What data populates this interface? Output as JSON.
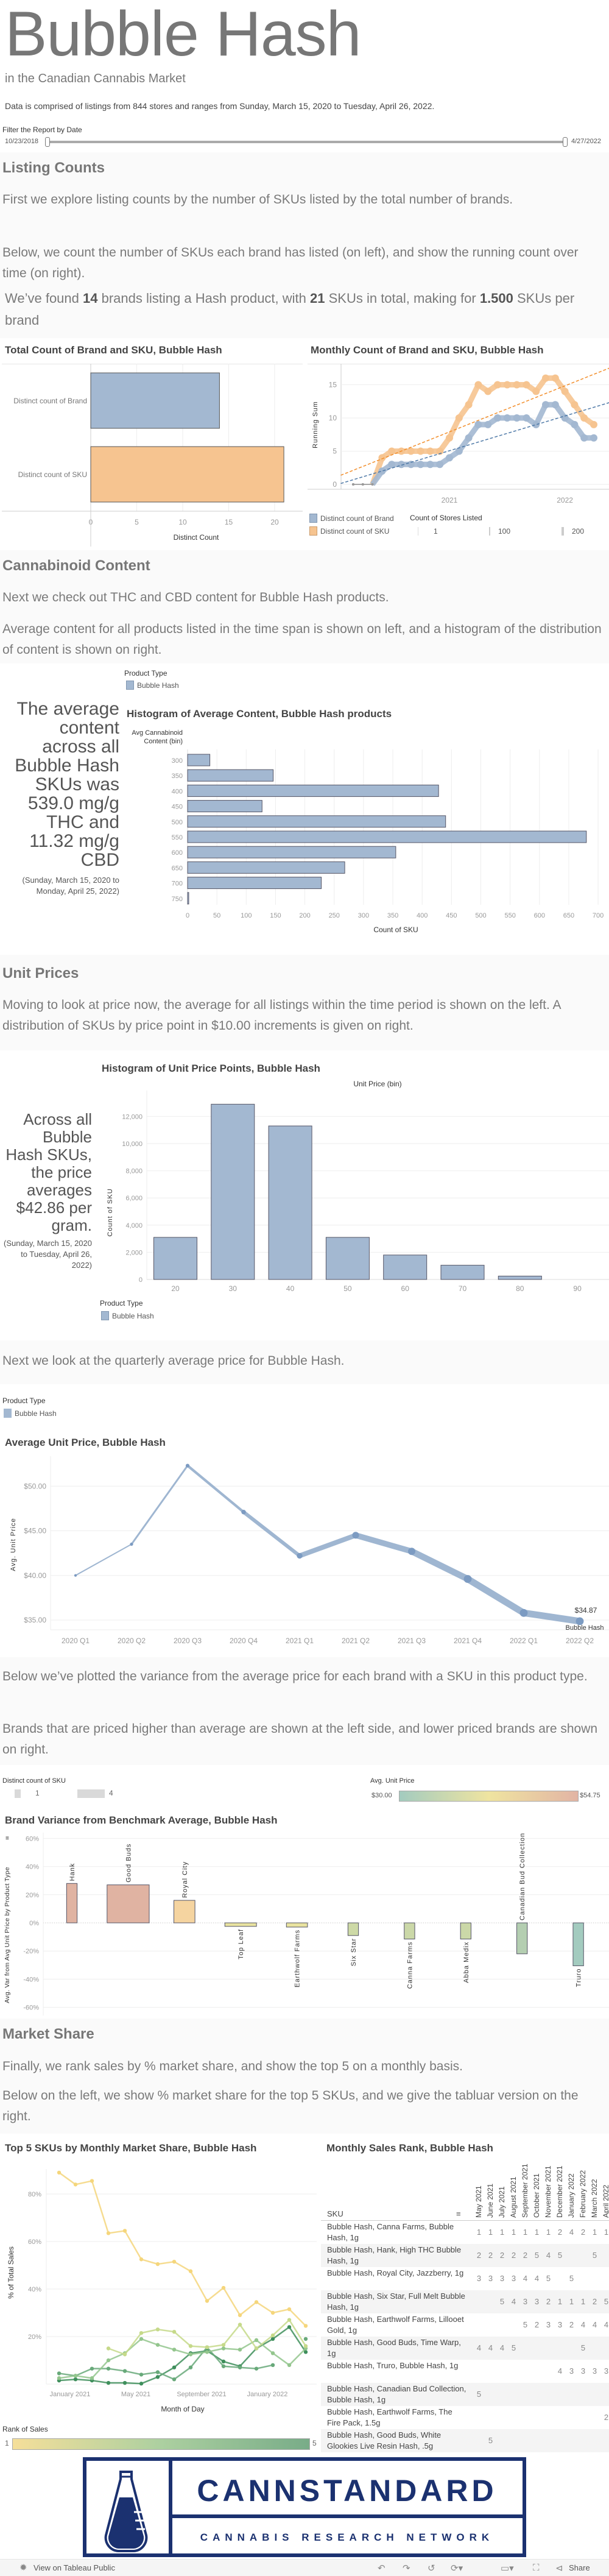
{
  "header": {
    "title": "Bubble Hash",
    "subtitle": "in the Canadian Cannabis Market",
    "data_note": "Data is comprised of listings from 844 stores and ranges from Sunday, March 15, 2020 to Tuesday, April 26, 2022.",
    "filter_label": "Filter the Report by Date",
    "filter_start": "10/23/2018",
    "filter_end": "4/27/2022"
  },
  "listing": {
    "heading": "Listing Counts",
    "p1": "First we explore listing counts by the number of SKUs listed by the total number of brands.",
    "p2": "Below, we count the number of SKUs each brand has listed (on left), and show the running count over time (on right).",
    "found_pre": "We’ve found ",
    "found_brands": "14",
    "found_mid1": " brands listing a Hash product, with ",
    "found_skus": "21",
    "found_mid2": " SKUs in total, making for ",
    "found_ratio": "1.500",
    "found_post": " SKUs per brand",
    "legend_brand": "Distinct count of Brand",
    "legend_sku": "Distinct count of SKU",
    "stores_legend_title": "Count of Stores Listed",
    "stores_legend_values": [
      "1",
      "100",
      "200"
    ]
  },
  "cannabinoid": {
    "heading": "Cannabinoid Content",
    "p1": "Next we check out THC and CBD content for Bubble Hash products.",
    "p2": "Average content for all products listed in the time span is shown on left, and a histogram of the distribution of content is shown on right.",
    "legend_title": "Product Type",
    "legend_item": "Bubble Hash",
    "summary_lines": [
      "The average",
      "content",
      "across all",
      "Bubble Hash",
      "SKUs was",
      "539.0 mg/g",
      "THC and",
      "11.32 mg/g",
      "CBD"
    ],
    "summary_date": "(Sunday, March 15, 2020 to Monday, April 25, 2022)"
  },
  "prices": {
    "heading": "Unit Prices",
    "p1": "Moving to look at price now, the average for all listings within the time period is shown on the left. A distribution of SKUs by price point in $10.00 increments is given on right.",
    "summary_lines": [
      "Across all",
      "Bubble",
      "Hash SKUs,",
      "the price",
      "averages",
      "$42.86 per",
      "gram."
    ],
    "summary_date": "(Sunday, March 15, 2020 to Tuesday, April 26, 2022)",
    "legend_title": "Product Type",
    "legend_item": "Bubble Hash",
    "quarterly_text": "Next we look at the quarterly average price for Bubble Hash.",
    "q_legend_title": "Product Type",
    "q_legend_item": "Bubble Hash"
  },
  "variance": {
    "p1": "Below we’ve plotted the variance from the average price for each brand with a SKU in this product type.",
    "p2": "Brands that are priced higher than average are shown at the left side, and lower priced brands are shown on right.",
    "size_legend_title": "Distinct count of SKU",
    "size_legend_values": [
      "1",
      "4"
    ],
    "color_legend_title": "Avg. Unit Price",
    "color_legend_min": "$30.00",
    "color_legend_max": "$54.75",
    "color_low": "#a3cbbf",
    "color_mid": "#efe4a0",
    "color_high": "#e2b4a4"
  },
  "market": {
    "heading": "Market Share",
    "p1": "Finally, we rank sales by % market share, and show the top 5 on a monthly basis.",
    "p2": "Below on the left, we show % market share for the top 5 SKUs, and we give the tabluar version on the right.",
    "rank_legend_title": "Rank of Sales",
    "rank_legend_min": "1",
    "rank_legend_max": "5"
  },
  "table": {
    "title": "Monthly Sales Rank, Bubble Hash",
    "sku_header": "SKU",
    "months": [
      "May 2021",
      "June 2021",
      "July 2021",
      "August 2021",
      "September 2021",
      "October 2021",
      "November 2021",
      "December 2021",
      "January 2022",
      "February 2022",
      "March 2022",
      "April 2022"
    ],
    "rows": [
      {
        "sku": "Bubble Hash, Canna Farms, Bubble Hash, 1g",
        "ranks": [
          "1",
          "1",
          "1",
          "1",
          "1",
          "1",
          "1",
          "2",
          "4",
          "2",
          "1",
          "1"
        ]
      },
      {
        "sku": "Bubble Hash, Hank, High THC Bubble Hash, 1g",
        "ranks": [
          "2",
          "2",
          "2",
          "2",
          "2",
          "5",
          "4",
          "5",
          "",
          "",
          "5",
          ""
        ]
      },
      {
        "sku": "Bubble Hash, Royal City, Jazzberry, 1g",
        "ranks": [
          "3",
          "3",
          "3",
          "3",
          "4",
          "4",
          "5",
          "",
          "5",
          "",
          "",
          ""
        ]
      },
      {
        "sku": "Bubble Hash, Six Star, Full Melt Bubble Hash, 1g",
        "ranks": [
          "",
          "",
          "5",
          "4",
          "3",
          "3",
          "2",
          "1",
          "1",
          "1",
          "2",
          "5"
        ]
      },
      {
        "sku": "Bubble Hash, Earthwolf Farms, Lillooet Gold, 1g",
        "ranks": [
          "",
          "",
          "",
          "",
          "5",
          "2",
          "3",
          "3",
          "2",
          "4",
          "4",
          "4"
        ]
      },
      {
        "sku": "Bubble Hash, Good Buds, Time Warp, 1g",
        "ranks": [
          "4",
          "4",
          "4",
          "5",
          "",
          "",
          "",
          "",
          "",
          "5",
          "",
          ""
        ]
      },
      {
        "sku": "Bubble Hash, Truro, Bubble Hash, 1g",
        "ranks": [
          "",
          "",
          "",
          "",
          "",
          "",
          "",
          "4",
          "3",
          "3",
          "3",
          "3"
        ]
      },
      {
        "sku": "Bubble Hash, Canadian Bud Collection, Bubble Hash, 1g",
        "ranks": [
          "5",
          "",
          "",
          "",
          "",
          "",
          "",
          "",
          "",
          "",
          "",
          ""
        ]
      },
      {
        "sku": "Bubble Hash, Earthwolf Farms, The Fire Pack, 1.5g",
        "ranks": [
          "",
          "",
          "",
          "",
          "",
          "",
          "",
          "",
          "",
          "",
          "",
          "2"
        ]
      },
      {
        "sku": "Bubble Hash, Good Buds, White Glookies Live Resin Hash, .5g",
        "ranks": [
          "",
          "5",
          "",
          "",
          "",
          "",
          "",
          "",
          "",
          "",
          "",
          ""
        ]
      }
    ]
  },
  "logo": {
    "name": "CANNSTANDARD",
    "tagline": "CANNABIS RESEARCH NETWORK",
    "color": "#1b3170"
  },
  "footer": {
    "view_label": "View on Tableau Public",
    "share_label": "Share"
  },
  "chart_data": [
    {
      "type": "bar",
      "title": "Total Count of Brand and SKU, Bubble Hash",
      "categories": [
        "Distinct count of Brand",
        "Distinct count of SKU"
      ],
      "values": [
        14,
        21
      ],
      "colors": [
        "#a3b8d1",
        "#f6c490"
      ],
      "xlabel": "Distinct Count",
      "xticks": [
        "0",
        "5",
        "10",
        "15",
        "20"
      ],
      "xlim": [
        0,
        23
      ]
    },
    {
      "type": "line",
      "title": "Monthly Count of Brand and SKU, Bubble Hash",
      "ylabel": "Running Sum",
      "x_start": "March 2020",
      "xticks": [
        "2021",
        "2022"
      ],
      "yticks": [
        "0",
        "5",
        "10",
        "15"
      ],
      "ylim": [
        0,
        17
      ],
      "series": [
        {
          "name": "Distinct count of Brand",
          "color": "#4e79a7",
          "values": [
            0,
            0,
            0,
            2,
            3,
            3,
            3,
            3,
            3,
            3,
            4,
            5,
            7,
            9,
            9,
            10,
            10,
            10,
            10,
            9,
            12,
            12,
            10,
            9,
            7,
            7
          ]
        },
        {
          "name": "Distinct count of SKU",
          "color": "#f28e2b",
          "values": [
            0,
            0,
            0,
            4,
            5,
            5,
            5,
            5,
            5,
            5,
            7,
            10,
            12,
            15,
            14,
            15,
            15,
            15,
            15,
            14,
            16,
            16,
            14,
            12,
            10,
            9
          ]
        }
      ],
      "trend_lines": true
    },
    {
      "type": "bar",
      "title": "Histogram of Average Content, Bubble Hash products",
      "ylabel": "Avg Cannabinoid Content (bin)",
      "xlabel": "Count of SKU",
      "categories": [
        "300",
        "350",
        "400",
        "450",
        "500",
        "550",
        "600",
        "650",
        "700",
        "750"
      ],
      "values": [
        38,
        146,
        428,
        127,
        440,
        680,
        355,
        268,
        228,
        2
      ],
      "xticks": [
        "0",
        "50",
        "100",
        "150",
        "200",
        "250",
        "300",
        "350",
        "400",
        "450",
        "500",
        "550",
        "600",
        "650",
        "700"
      ],
      "xlim": [
        0,
        710
      ]
    },
    {
      "type": "bar",
      "title": "Histogram of Unit Price Points, Bubble Hash",
      "xlabel": "Unit Price (bin)",
      "ylabel": "Count of SKU",
      "categories": [
        "20",
        "30",
        "40",
        "50",
        "60",
        "70",
        "80",
        "90"
      ],
      "values": [
        3100,
        12900,
        11300,
        3100,
        1800,
        1050,
        250,
        0
      ],
      "yticks": [
        "0",
        "2,000",
        "4,000",
        "6,000",
        "8,000",
        "10,000",
        "12,000"
      ],
      "ylim": [
        0,
        13500
      ]
    },
    {
      "type": "line",
      "title": "Average Unit Price, Bubble Hash",
      "ylabel": "Avg. Unit Price",
      "categories": [
        "2020 Q1",
        "2020 Q2",
        "2020 Q3",
        "2020 Q4",
        "2021 Q1",
        "2021 Q2",
        "2021 Q3",
        "2021 Q4",
        "2022 Q1",
        "2022 Q2"
      ],
      "values": [
        40.0,
        43.5,
        52.3,
        47.1,
        42.2,
        44.5,
        42.7,
        39.6,
        35.8,
        34.87
      ],
      "yticks": [
        "$35.00",
        "$40.00",
        "$45.00",
        "$50.00"
      ],
      "ylim": [
        33.9,
        53.5
      ],
      "end_label": "$34.87",
      "end_series_label": "Bubble Hash"
    },
    {
      "type": "bar",
      "title": "Brand Variance from Benchmark Average, Bubble Hash",
      "ylabel": "Avg. Var from Avg Unit Price by Product Type",
      "categories": [
        "Hank",
        "Good Buds",
        "Royal City",
        "Top Leaf",
        "Earthwolf Farms",
        "Six Star",
        "Canna Farms",
        "Abba Medix",
        "Canadian Bud Collection",
        "Truro"
      ],
      "values": [
        28,
        27,
        16,
        -2.5,
        -3,
        -9,
        -11.5,
        -11.5,
        -22,
        -30.5
      ],
      "sku_counts": [
        1,
        4,
        2,
        3,
        2,
        1,
        1,
        1,
        1,
        1
      ],
      "colors": [
        "#e0b3a2",
        "#e0b3a2",
        "#f5d4a0",
        "#e9e3a0",
        "#e9e3a0",
        "#cdd9a6",
        "#cbd8a8",
        "#cbd8a8",
        "#b4ceb1",
        "#a3cbbf"
      ],
      "yticks": [
        "-60%",
        "-40%",
        "-20%",
        "0%",
        "20%",
        "40%",
        "60%"
      ],
      "ylim": [
        -60,
        60
      ]
    },
    {
      "type": "line",
      "title": "Top 5 SKUs by Monthly Market Share, Bubble Hash",
      "ylabel": "% of Total Sales",
      "xlabel": "Month of Day",
      "xticks": [
        "January 2021",
        "May 2021",
        "September 2021",
        "January 2022"
      ],
      "yticks": [
        "20%",
        "40%",
        "60%",
        "80%"
      ],
      "ylim": [
        0,
        90
      ],
      "x_start": "January 2021",
      "series": [
        {
          "color": "#f5d67c",
          "values": [
            89,
            84,
            85.5,
            63.5,
            64.5,
            52.5,
            50.5,
            51.5,
            47.5,
            35,
            40.5,
            29,
            34.5,
            30,
            31.5,
            24.5
          ]
        },
        {
          "color": "#c6d98a",
          "values": [
            null,
            null,
            null,
            15,
            12.5,
            21.5,
            23,
            22,
            16,
            15.5,
            16.5,
            25,
            15,
            20.5,
            27,
            16
          ]
        },
        {
          "color": "#93c58d",
          "values": [
            2.5,
            3.5,
            2.5,
            10,
            13,
            19,
            16.5,
            14.5,
            12.5,
            13.5,
            15,
            14.5,
            18.5,
            13,
            8,
            15
          ]
        },
        {
          "color": "#68a97a",
          "values": [
            4.5,
            3.5,
            6.5,
            6.5,
            5.5,
            4,
            5,
            2,
            7,
            15.5,
            7.5,
            7,
            6.5,
            8,
            null,
            19
          ]
        },
        {
          "color": "#3f8f5c",
          "values": [
            1.5,
            2,
            1.5,
            0.5,
            0.5,
            0.2,
            3,
            7,
            13,
            14,
            9.5,
            7.5,
            15,
            19,
            24,
            13.5
          ]
        }
      ]
    }
  ]
}
